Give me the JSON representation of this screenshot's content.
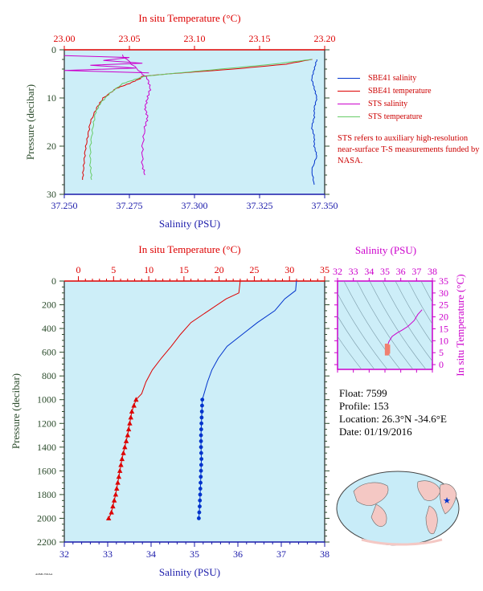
{
  "top_chart": {
    "type": "line",
    "top_axis_title": "In situ Temperature (°C)",
    "bottom_axis_title": "Salinity (PSU)",
    "y_axis_title": "Pressure (decibar)",
    "temp_ticks": [
      23.0,
      23.05,
      23.1,
      23.15,
      23.2
    ],
    "temp_tick_labels": [
      "23.00",
      "23.05",
      "23.10",
      "23.15",
      "23.20"
    ],
    "sal_ticks": [
      37.25,
      37.275,
      37.3,
      37.325,
      37.35
    ],
    "sal_tick_labels": [
      "37.250",
      "37.275",
      "37.300",
      "37.325",
      "37.350"
    ],
    "pres_ticks": [
      0,
      10,
      20,
      30
    ],
    "pres_tick_labels": [
      "0",
      "10",
      "20",
      "30"
    ],
    "xlim_temp": [
      23.0,
      23.2
    ],
    "xlim_sal": [
      37.25,
      37.35
    ],
    "ylim": [
      30,
      0
    ],
    "legend": [
      {
        "label": "SBE41 salinity",
        "color": "#0033cc"
      },
      {
        "label": "SBE41 temperature",
        "color": "#dd0000"
      },
      {
        "label": "STS salinity",
        "color": "#cc00cc"
      },
      {
        "label": "STS temperature",
        "color": "#66cc66"
      }
    ],
    "note": "STS refers to auxiliary high-resolution near-surface T-S measurements funded by NASA."
  },
  "chart_data": [
    {
      "type": "line",
      "x_units": "Salinity (PSU) / In situ Temperature (°C)",
      "series": [
        {
          "name": "SBE41 salinity",
          "axis": "salinity",
          "x": [
            37.347,
            37.346,
            37.345,
            37.346,
            37.347,
            37.346,
            37.346,
            37.345,
            37.346,
            37.346,
            37.347,
            37.345,
            37.346
          ],
          "y": [
            2,
            4,
            6,
            8,
            10,
            12,
            14,
            16,
            18,
            20,
            22,
            25,
            28
          ]
        },
        {
          "name": "SBE41 temperature",
          "axis": "temperature",
          "x": [
            23.19,
            23.17,
            23.13,
            23.08,
            23.06,
            23.058,
            23.05,
            23.04,
            23.03,
            23.025,
            23.02,
            23.018,
            23.016,
            23.015,
            23.014
          ],
          "y": [
            2,
            3,
            4,
            5,
            5.5,
            6,
            7,
            8,
            10,
            12,
            15,
            18,
            21,
            24,
            27
          ]
        },
        {
          "name": "STS salinity",
          "axis": "salinity",
          "x": [
            37.272,
            37.278,
            37.282,
            37.283,
            37.282,
            37.281,
            37.282,
            37.281,
            37.28,
            37.28,
            37.281
          ],
          "y": [
            1,
            4,
            6,
            8,
            10,
            12,
            14,
            16,
            20,
            24,
            26
          ]
        },
        {
          "name": "STS temperature",
          "axis": "temperature",
          "x": [
            23.19,
            23.16,
            23.12,
            23.08,
            23.062,
            23.056,
            23.045,
            23.035,
            23.028,
            23.024,
            23.022,
            23.02,
            23.02,
            23.021
          ],
          "y": [
            2,
            3,
            4,
            5,
            5.5,
            6,
            7,
            9,
            11,
            13,
            16,
            20,
            24,
            27
          ]
        }
      ]
    },
    {
      "type": "line",
      "top_axis_title": "In situ Temperature (°C)",
      "bottom_axis_title": "Salinity (PSU)",
      "y_axis_title": "Pressure (decibar)",
      "temp_ticks": [
        0,
        5,
        10,
        15,
        20,
        25,
        30,
        35
      ],
      "sal_ticks": [
        32,
        33,
        34,
        35,
        36,
        37,
        38
      ],
      "pres_ticks": [
        0,
        200,
        400,
        600,
        800,
        1000,
        1200,
        1400,
        1600,
        1800,
        2000,
        2200
      ],
      "xlim_temp": [
        -2,
        35
      ],
      "xlim_sal": [
        32,
        38
      ],
      "ylim": [
        2200,
        0
      ],
      "series": [
        {
          "name": "Temperature",
          "axis": "temperature",
          "marker": "triangle",
          "color": "#dd0000",
          "x": [
            23.0,
            22.8,
            21.0,
            18.5,
            16.0,
            14.5,
            13.2,
            11.8,
            10.5,
            9.6,
            9.0,
            8.2,
            7.6,
            7.3,
            7.0,
            6.6,
            6.2,
            5.9,
            5.6,
            5.3,
            5.1,
            4.9,
            4.7,
            4.5,
            4.3
          ],
          "y": [
            0,
            100,
            150,
            250,
            350,
            450,
            550,
            650,
            750,
            850,
            950,
            1000,
            1100,
            1200,
            1300,
            1400,
            1500,
            1600,
            1700,
            1800,
            1850,
            1900,
            1950,
            1980,
            2000
          ],
          "markers_y": [
            1000,
            1050,
            1100,
            1150,
            1200,
            1250,
            1300,
            1350,
            1400,
            1450,
            1500,
            1550,
            1600,
            1650,
            1700,
            1750,
            1800,
            1850,
            1900,
            1950,
            2000
          ]
        },
        {
          "name": "Salinity",
          "axis": "salinity",
          "marker": "dot",
          "color": "#0033cc",
          "x": [
            37.35,
            37.33,
            37.08,
            36.85,
            36.45,
            36.1,
            35.75,
            35.55,
            35.4,
            35.3,
            35.22,
            35.18,
            35.17,
            35.16,
            35.15,
            35.15,
            35.16,
            35.15,
            35.14,
            35.13,
            35.12,
            35.11,
            35.1
          ],
          "y": [
            0,
            80,
            150,
            250,
            350,
            450,
            550,
            650,
            750,
            850,
            950,
            1000,
            1100,
            1200,
            1300,
            1400,
            1500,
            1600,
            1700,
            1800,
            1900,
            1950,
            2000
          ],
          "markers_y": [
            1000,
            1050,
            1100,
            1150,
            1200,
            1250,
            1300,
            1350,
            1400,
            1450,
            1500,
            1550,
            1600,
            1650,
            1700,
            1750,
            1800,
            1850,
            1900,
            1950,
            2000
          ]
        }
      ]
    },
    {
      "type": "scatter",
      "top_axis_title": "Salinity (PSU)",
      "right_axis_title": "In situ Temperature (°C)",
      "sal_ticks": [
        32,
        33,
        34,
        35,
        36,
        37,
        38
      ],
      "temp_ticks": [
        0,
        5,
        10,
        15,
        20,
        25,
        30,
        35
      ],
      "xlim": [
        32,
        38
      ],
      "ylim": [
        -2,
        35
      ],
      "series": [
        {
          "name": "T-S",
          "color": "#cc00cc",
          "x": [
            35.1,
            35.12,
            35.15,
            35.16,
            35.18,
            35.25,
            35.45,
            35.75,
            36.1,
            36.45,
            36.85,
            37.08,
            37.35
          ],
          "y": [
            4.3,
            5.0,
            6.0,
            7.0,
            8.2,
            9.6,
            11.8,
            13.2,
            14.5,
            16.0,
            18.5,
            21.0,
            23.0
          ]
        }
      ]
    }
  ],
  "main_chart": {
    "top_axis_title": "In situ Temperature (°C)",
    "bottom_axis_title": "Salinity (PSU)",
    "y_axis_title": "Pressure (decibar)",
    "temp_tick_labels": [
      "0",
      "5",
      "10",
      "15",
      "20",
      "25",
      "30",
      "35"
    ],
    "sal_tick_labels": [
      "32",
      "33",
      "34",
      "35",
      "36",
      "37",
      "38"
    ],
    "pres_tick_labels": [
      "0",
      "200",
      "400",
      "600",
      "800",
      "1000",
      "1200",
      "1400",
      "1600",
      "1800",
      "2000",
      "2200"
    ]
  },
  "ts_chart": {
    "top_axis_title": "Salinity (PSU)",
    "right_axis_title": "In situ Temperature (°C)",
    "sal_tick_labels": [
      "32",
      "33",
      "34",
      "35",
      "36",
      "37",
      "38"
    ],
    "temp_tick_labels": [
      "0",
      "5",
      "10",
      "15",
      "20",
      "25",
      "30",
      "35"
    ]
  },
  "info": {
    "float_label": "Float:",
    "float_value": "7599",
    "profile_label": "Profile:",
    "profile_value": "153",
    "location_label": "Location:",
    "location_value": "26.3°N  -34.6°E",
    "date_label": "Date:",
    "date_value": "01/19/2016"
  },
  "colors": {
    "plot_bg": "#cdeef8",
    "temperature_axis": "#dd0000",
    "salinity_axis": "#1a1aaa",
    "pressure_axis": "#2a4a2a",
    "ts_axis": "#cc00cc"
  },
  "map": {
    "icon": "world-map-icon",
    "marker": "float-location-star"
  }
}
